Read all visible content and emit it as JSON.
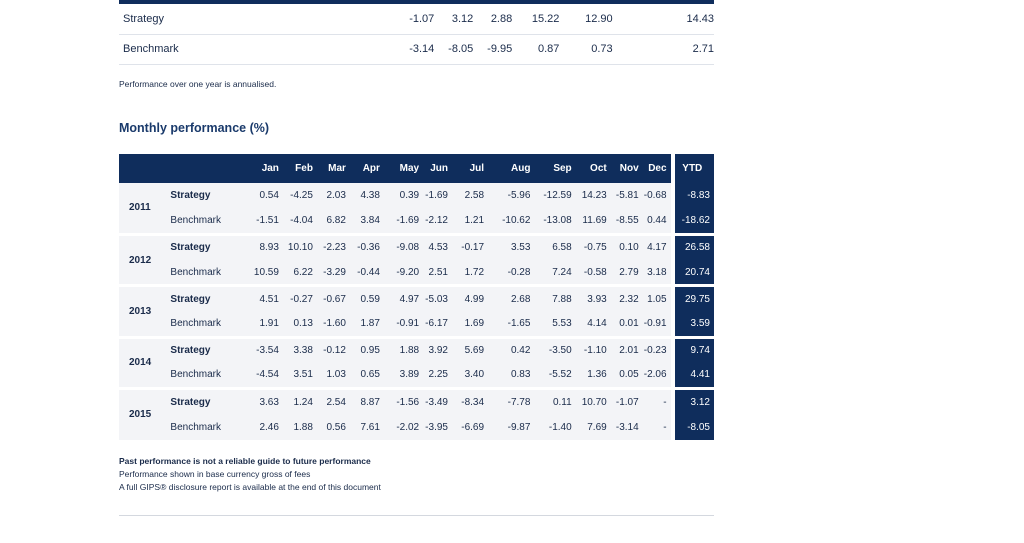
{
  "summary": {
    "rows": [
      {
        "label": "Strategy",
        "values": [
          "-1.07",
          "3.12",
          "2.88",
          "15.22",
          "12.90",
          "14.43"
        ]
      },
      {
        "label": "Benchmark",
        "values": [
          "-3.14",
          "-8.05",
          "-9.95",
          "0.87",
          "0.73",
          "2.71"
        ]
      }
    ],
    "note": "Performance over one year is annualised."
  },
  "monthly": {
    "title": "Monthly performance (%)",
    "months": [
      "Jan",
      "Feb",
      "Mar",
      "Apr",
      "May",
      "Jun",
      "Jul",
      "Aug",
      "Sep",
      "Oct",
      "Nov",
      "Dec"
    ],
    "ytd_label": "YTD",
    "years": [
      {
        "year": "2011",
        "strategy": {
          "label": "Strategy",
          "values": [
            "0.54",
            "-4.25",
            "2.03",
            "4.38",
            "0.39",
            "-1.69",
            "2.58",
            "-5.96",
            "-12.59",
            "14.23",
            "-5.81",
            "-0.68"
          ],
          "ytd": "-8.83"
        },
        "benchmark": {
          "label": "Benchmark",
          "values": [
            "-1.51",
            "-4.04",
            "6.82",
            "3.84",
            "-1.69",
            "-2.12",
            "1.21",
            "-10.62",
            "-13.08",
            "11.69",
            "-8.55",
            "0.44"
          ],
          "ytd": "-18.62"
        }
      },
      {
        "year": "2012",
        "strategy": {
          "label": "Strategy",
          "values": [
            "8.93",
            "10.10",
            "-2.23",
            "-0.36",
            "-9.08",
            "4.53",
            "-0.17",
            "3.53",
            "6.58",
            "-0.75",
            "0.10",
            "4.17"
          ],
          "ytd": "26.58"
        },
        "benchmark": {
          "label": "Benchmark",
          "values": [
            "10.59",
            "6.22",
            "-3.29",
            "-0.44",
            "-9.20",
            "2.51",
            "1.72",
            "-0.28",
            "7.24",
            "-0.58",
            "2.79",
            "3.18"
          ],
          "ytd": "20.74"
        }
      },
      {
        "year": "2013",
        "strategy": {
          "label": "Strategy",
          "values": [
            "4.51",
            "-0.27",
            "-0.67",
            "0.59",
            "4.97",
            "-5.03",
            "4.99",
            "2.68",
            "7.88",
            "3.93",
            "2.32",
            "1.05"
          ],
          "ytd": "29.75"
        },
        "benchmark": {
          "label": "Benchmark",
          "values": [
            "1.91",
            "0.13",
            "-1.60",
            "1.87",
            "-0.91",
            "-6.17",
            "1.69",
            "-1.65",
            "5.53",
            "4.14",
            "0.01",
            "-0.91"
          ],
          "ytd": "3.59"
        }
      },
      {
        "year": "2014",
        "strategy": {
          "label": "Strategy",
          "values": [
            "-3.54",
            "3.38",
            "-0.12",
            "0.95",
            "1.88",
            "3.92",
            "5.69",
            "0.42",
            "-3.50",
            "-1.10",
            "2.01",
            "-0.23"
          ],
          "ytd": "9.74"
        },
        "benchmark": {
          "label": "Benchmark",
          "values": [
            "-4.54",
            "3.51",
            "1.03",
            "0.65",
            "3.89",
            "2.25",
            "3.40",
            "0.83",
            "-5.52",
            "1.36",
            "0.05",
            "-2.06"
          ],
          "ytd": "4.41"
        }
      },
      {
        "year": "2015",
        "strategy": {
          "label": "Strategy",
          "values": [
            "3.63",
            "1.24",
            "2.54",
            "8.87",
            "-1.56",
            "-3.49",
            "-8.34",
            "-7.78",
            "0.11",
            "10.70",
            "-1.07",
            "-"
          ],
          "ytd": "3.12"
        },
        "benchmark": {
          "label": "Benchmark",
          "values": [
            "2.46",
            "1.88",
            "0.56",
            "7.61",
            "-2.02",
            "-3.95",
            "-6.69",
            "-9.87",
            "-1.40",
            "7.69",
            "-3.14",
            "-"
          ],
          "ytd": "-8.05"
        }
      }
    ]
  },
  "footnotes": {
    "line1": "Past performance is not a reliable guide to future performance",
    "line2": "Performance shown in base currency gross of fees",
    "line3": "A full GIPS® disclosure report is available at the end of this document"
  }
}
